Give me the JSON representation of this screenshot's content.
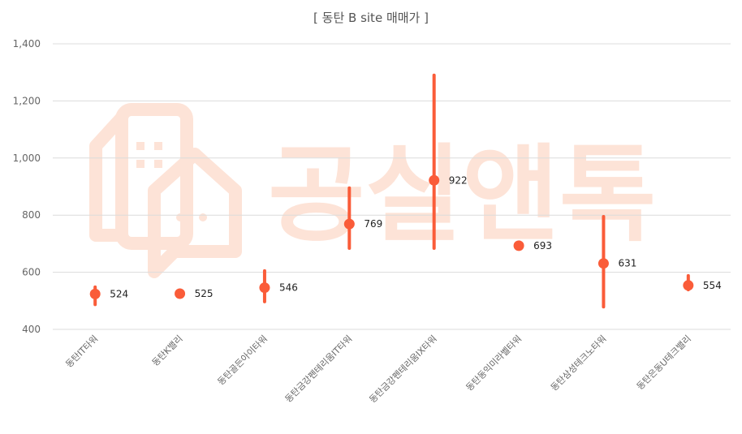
{
  "chart_data": {
    "type": "scatter",
    "title": "[ 동탄 B site 매매가 ]",
    "xlabel": "",
    "ylabel": "",
    "ylim": [
      400,
      1400
    ],
    "yticks": [
      400,
      600,
      800,
      1000,
      1200,
      1400
    ],
    "ytick_labels": [
      "400",
      "600",
      "800",
      "1,000",
      "1,200",
      "1,400"
    ],
    "grid": true,
    "legend": "none",
    "color": "#fa5c39",
    "categories": [
      "동탄IT타워",
      "동탄K밸리",
      "동탄골든아이타워",
      "동탄금강펜테리움IT타워",
      "동탄금강펜테리움IX타워",
      "동탄동익미라벨타워",
      "동탄삼성테크노타워",
      "동탄은동U테크밸리"
    ],
    "values": [
      524,
      525,
      546,
      769,
      922,
      693,
      631,
      554
    ],
    "value_labels": [
      "524",
      "525",
      "546",
      "769",
      "922",
      "693",
      "631",
      "554"
    ],
    "low": [
      487,
      525,
      497,
      684,
      684,
      693,
      479,
      539
    ],
    "high": [
      548,
      525,
      605,
      895,
      1290,
      693,
      795,
      588
    ]
  },
  "watermark": {
    "text": "공실앤톡"
  }
}
